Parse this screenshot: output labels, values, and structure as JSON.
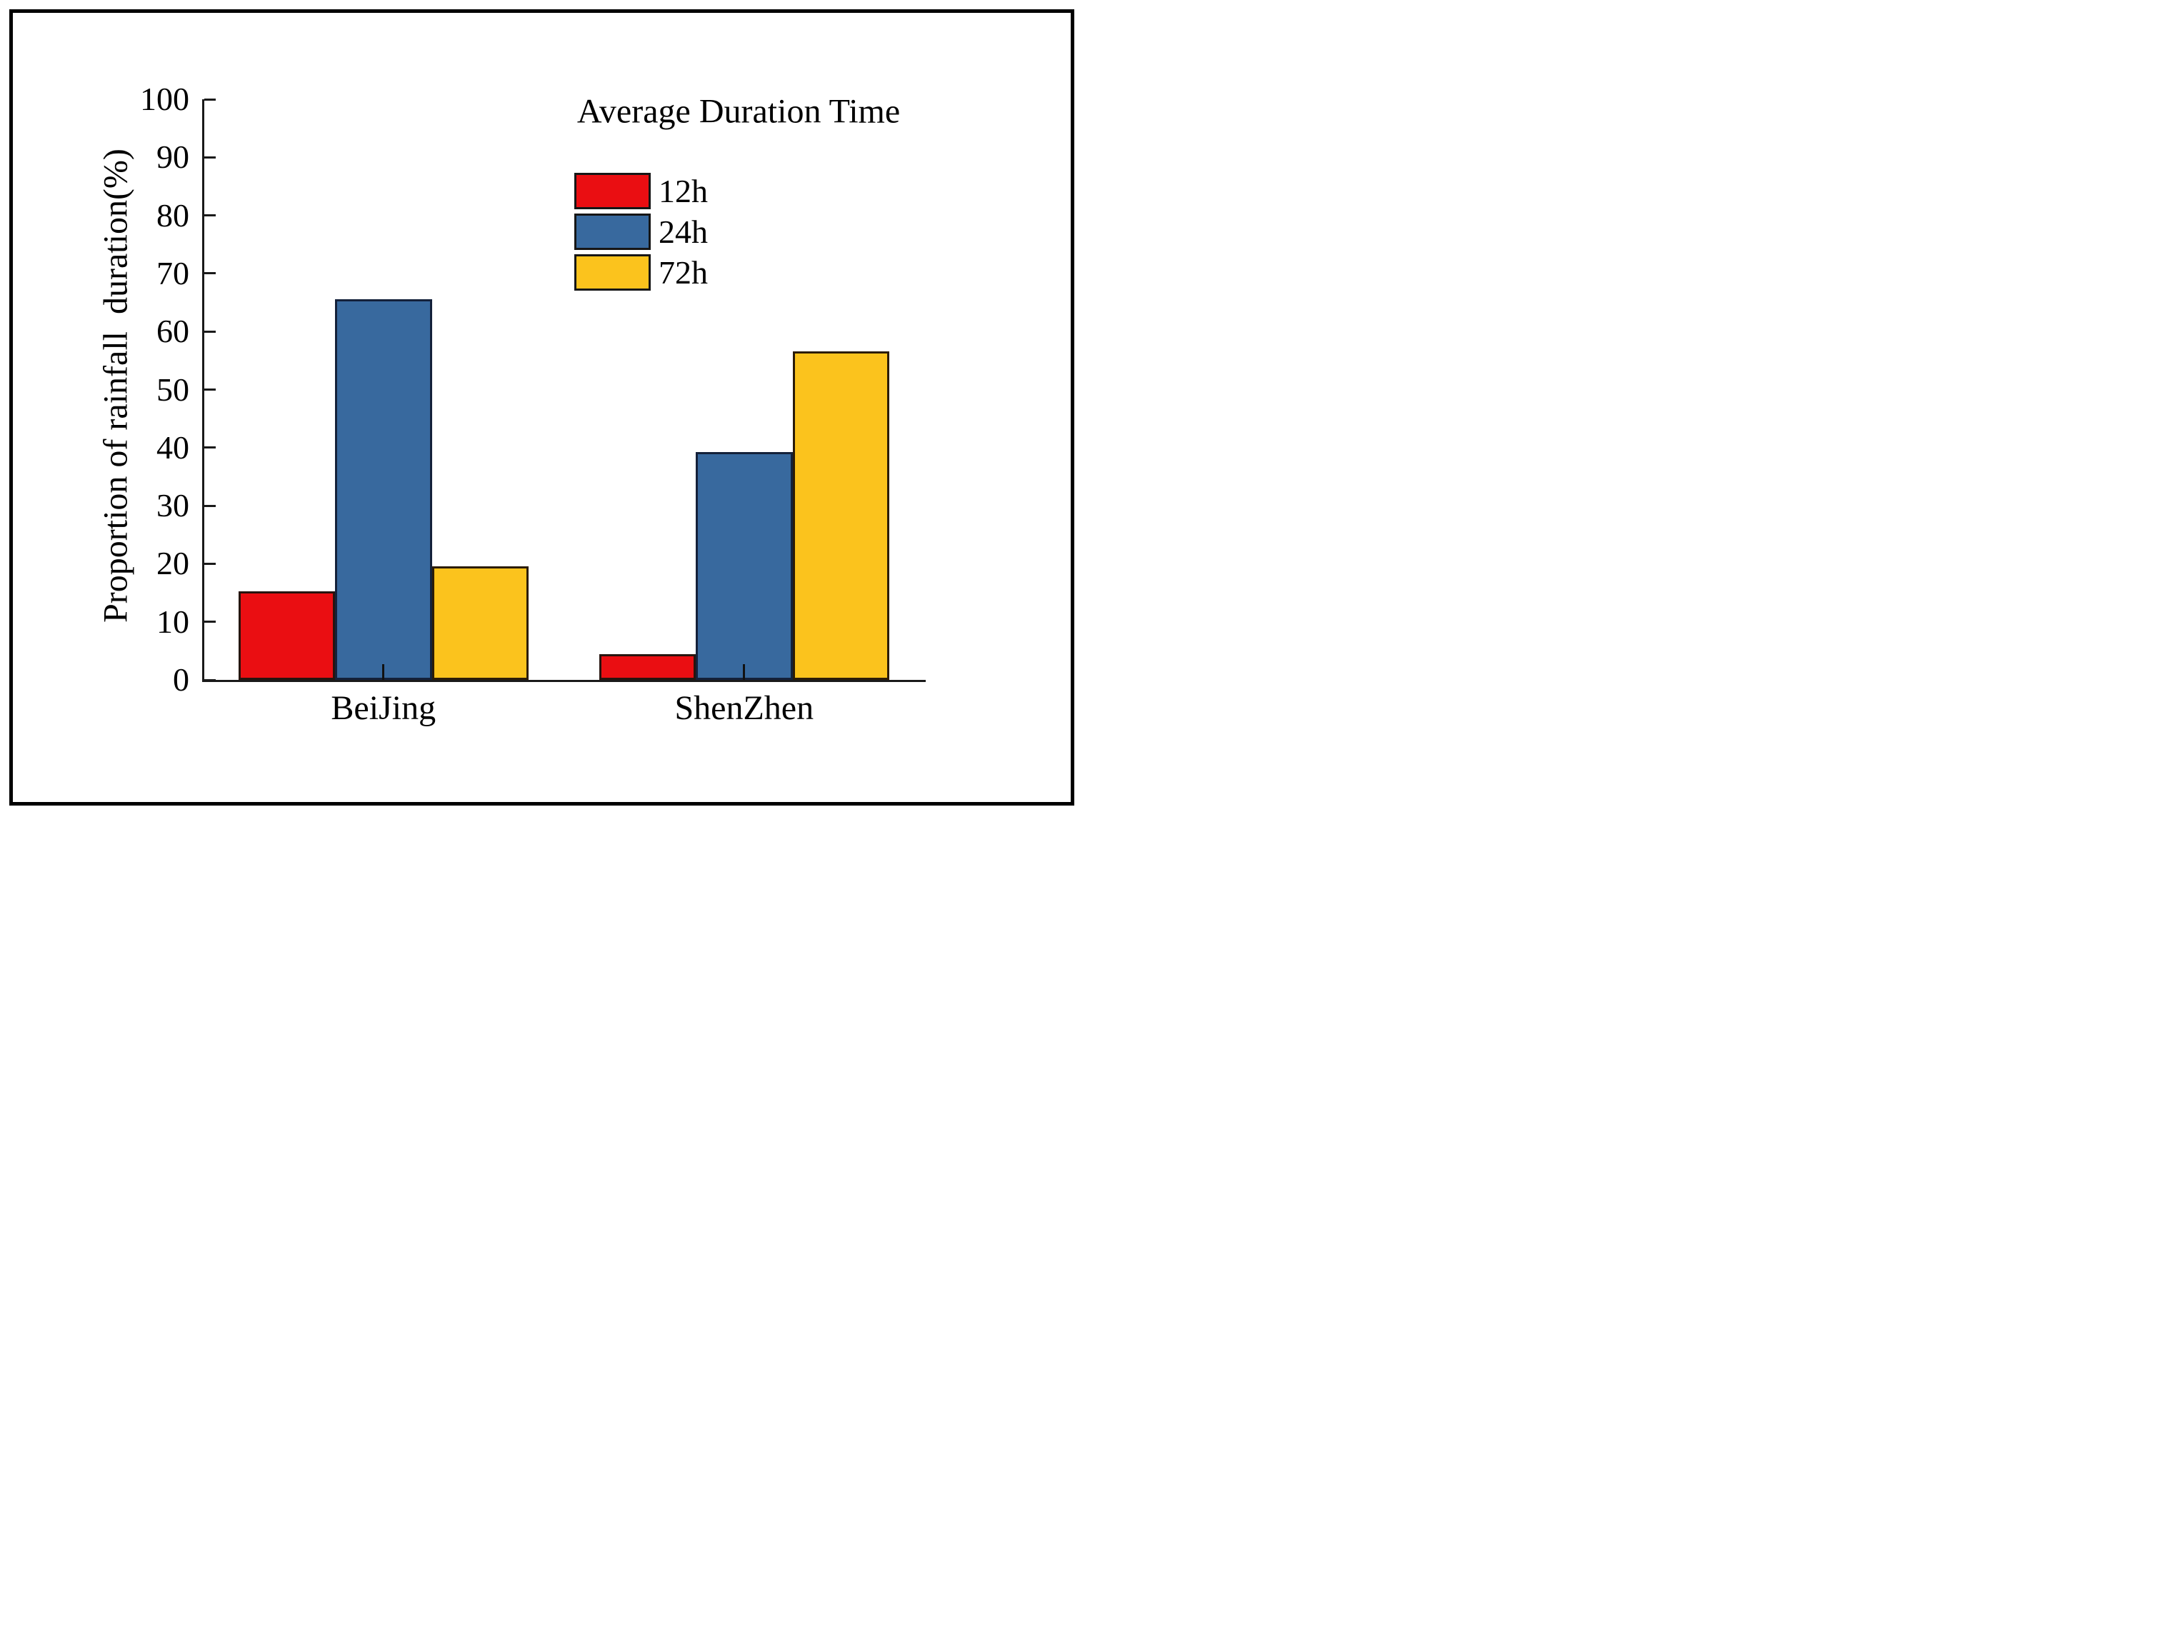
{
  "figure": {
    "background": "#ffffff",
    "border_color": "#000000"
  },
  "chart_data": {
    "type": "bar",
    "title": "",
    "categories": [
      "BeiJing",
      "ShenZhen"
    ],
    "series": [
      {
        "name": "12h",
        "color": "#ea0e12",
        "edge_color": "#27140f",
        "values": [
          15.2,
          4.4
        ]
      },
      {
        "name": "24h",
        "color": "#38699e",
        "edge_color": "#14213a",
        "values": [
          65.5,
          39.2
        ]
      },
      {
        "name": "72h",
        "color": "#fbc31d",
        "edge_color": "#2b1c08",
        "values": [
          19.5,
          56.6
        ]
      }
    ],
    "xlabel": "",
    "ylabel": "Proportion of rainfall  duration(%)",
    "ylim": [
      0,
      100
    ],
    "y_ticks": [
      0,
      10,
      20,
      30,
      40,
      50,
      60,
      70,
      80,
      90,
      100
    ],
    "grid": false,
    "legend": {
      "title": "Average Duration Time",
      "position": "upper right",
      "entries": [
        "12h",
        "24h",
        "72h"
      ]
    }
  }
}
